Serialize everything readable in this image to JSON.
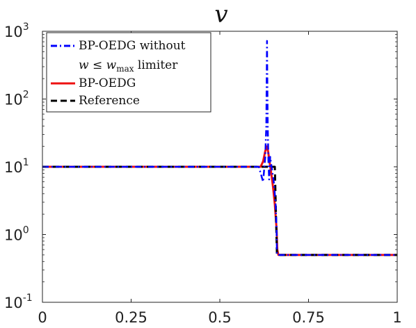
{
  "chart_data": {
    "type": "line",
    "title": "v",
    "xlabel": "",
    "ylabel": "",
    "xlim": [
      0,
      1
    ],
    "ylim_log10": [
      -1,
      3
    ],
    "yscale": "log",
    "grid": false,
    "legend_position": "top-left",
    "x_ticks": [
      "0",
      "0.25",
      "0.5",
      "0.75",
      "1"
    ],
    "x_tick_values": [
      0,
      0.25,
      0.5,
      0.75,
      1
    ],
    "y_ticks": [
      {
        "base": "10",
        "exp": "-1",
        "value": 0.1
      },
      {
        "base": "10",
        "exp": "0",
        "value": 1
      },
      {
        "base": "10",
        "exp": "1",
        "value": 10
      },
      {
        "base": "10",
        "exp": "2",
        "value": 100
      },
      {
        "base": "10",
        "exp": "3",
        "value": 1000
      }
    ],
    "series": [
      {
        "name": "BP-OEDG without w ≤ w_max limiter",
        "legend_line1": "BP-OEDG without",
        "legend_math_w": "w",
        "legend_math_le": " ≤ ",
        "legend_math_wmax": "w",
        "legend_math_sub": "max",
        "legend_suffix": " limiter",
        "color": "#0000ff",
        "style": "dashdot",
        "x": [
          0,
          0.61,
          0.622,
          0.628,
          0.631,
          0.633,
          0.635,
          0.637,
          0.639,
          0.642,
          0.647,
          0.652,
          0.657,
          0.66,
          0.661,
          0.665,
          1
        ],
        "y": [
          10,
          10,
          6,
          14,
          40,
          720,
          40,
          12,
          6.5,
          14,
          9,
          6,
          3,
          1.2,
          0.5,
          0.5,
          0.5
        ]
      },
      {
        "name": "BP-OEDG",
        "legend_label": "BP-OEDG",
        "color": "#ee1111",
        "style": "solid",
        "x": [
          0,
          0.615,
          0.622,
          0.628,
          0.632,
          0.636,
          0.64,
          0.645,
          0.65,
          0.655,
          0.66,
          0.662,
          0.665,
          1
        ],
        "y": [
          10,
          10,
          12,
          17,
          20,
          17,
          12,
          8,
          5,
          2.8,
          1.2,
          0.6,
          0.5,
          0.5
        ]
      },
      {
        "name": "Reference",
        "legend_label": "Reference",
        "color": "#000000",
        "style": "dashed",
        "x": [
          0,
          0.655,
          0.661,
          0.665,
          1
        ],
        "y": [
          10,
          10,
          0.5,
          0.5,
          0.5
        ]
      }
    ]
  }
}
